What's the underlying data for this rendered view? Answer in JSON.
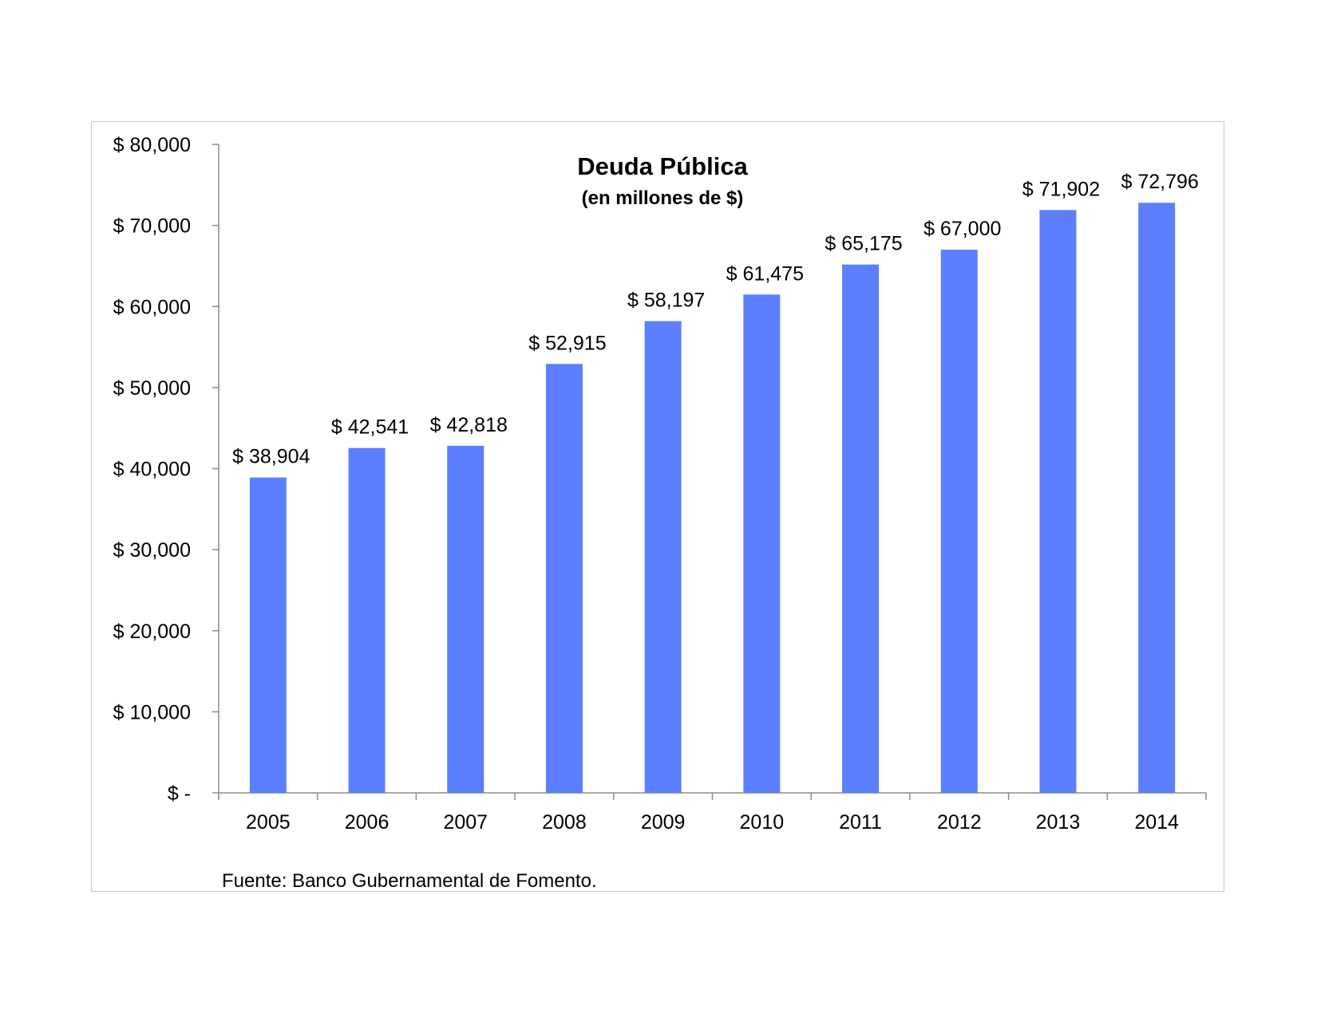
{
  "chart_data": {
    "type": "bar",
    "title": "Deuda Pública",
    "subtitle": "(en millones de $)",
    "categories": [
      "2005",
      "2006",
      "2007",
      "2008",
      "2009",
      "2010",
      "2011",
      "2012",
      "2013",
      "2014"
    ],
    "values": [
      38904,
      42541,
      42818,
      52915,
      58197,
      61475,
      65175,
      67000,
      71902,
      72796
    ],
    "data_labels": [
      "$ 38,904",
      "$ 42,541",
      "$ 42,818",
      "$ 52,915",
      "$ 58,197",
      "$ 61,475",
      "$ 65,175",
      "$ 67,000",
      "$ 71,902",
      "$ 72,796"
    ],
    "y_ticks": [
      0,
      10000,
      20000,
      30000,
      40000,
      50000,
      60000,
      70000,
      80000
    ],
    "y_tick_labels": [
      "$ -",
      "$ 10,000",
      "$ 20,000",
      "$ 30,000",
      "$ 40,000",
      "$ 50,000",
      "$ 60,000",
      "$ 70,000",
      "$ 80,000"
    ],
    "ylim": [
      0,
      80000
    ],
    "xlabel": "",
    "ylabel": "",
    "grid": false,
    "legend": "none",
    "bar_color": "#5b7fff",
    "source": "Fuente: Banco Gubernamental de Fomento."
  }
}
